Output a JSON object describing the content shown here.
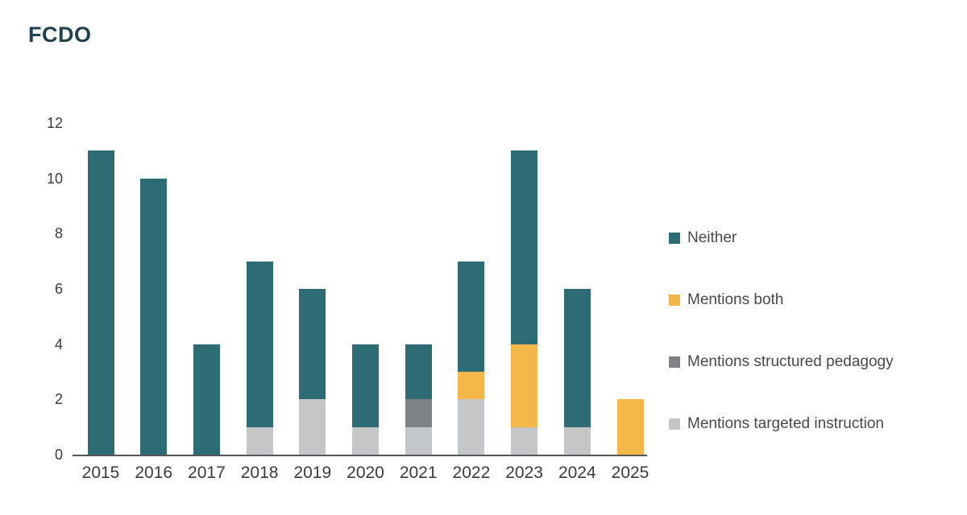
{
  "title": "FCDO",
  "chart_data": {
    "type": "bar",
    "stacked": true,
    "title": "FCDO",
    "xlabel": "",
    "ylabel": "",
    "categories": [
      "2015",
      "2016",
      "2017",
      "2018",
      "2019",
      "2020",
      "2021",
      "2022",
      "2023",
      "2024",
      "2025"
    ],
    "series": [
      {
        "name": "Mentions targeted instruction",
        "color": "#C5C6C7",
        "values": [
          0,
          0,
          0,
          1,
          2,
          1,
          1,
          2,
          1,
          1,
          0
        ]
      },
      {
        "name": "Mentions structured pedagogy",
        "color": "#808285",
        "values": [
          0,
          0,
          0,
          0,
          0,
          0,
          1,
          0,
          0,
          0,
          0
        ]
      },
      {
        "name": "Mentions both",
        "color": "#F4B74A",
        "values": [
          0,
          0,
          0,
          0,
          0,
          0,
          0,
          1,
          3,
          0,
          2
        ]
      },
      {
        "name": "Neither",
        "color": "#2D6B75",
        "values": [
          11,
          10,
          4,
          6,
          4,
          3,
          2,
          4,
          7,
          5,
          0
        ]
      }
    ],
    "totals": [
      11,
      10,
      4,
      7,
      6,
      4,
      4,
      7,
      11,
      6,
      2
    ],
    "yticks": [
      0,
      2,
      4,
      6,
      8,
      10,
      12
    ],
    "ylim": [
      0,
      12
    ],
    "grid": false,
    "legend_position": "right",
    "legend": [
      {
        "label": "Neither",
        "color": "#2D6B75"
      },
      {
        "label": "Mentions both",
        "color": "#F4B74A"
      },
      {
        "label": "Mentions structured pedagogy",
        "color": "#808285"
      },
      {
        "label": "Mentions targeted instruction",
        "color": "#C5C6C7"
      }
    ],
    "colors": {
      "axis_line": "#55565A",
      "tick_text": "#3A3B3D",
      "legend_text": "#47484A",
      "title_text": "#1F404E"
    }
  }
}
